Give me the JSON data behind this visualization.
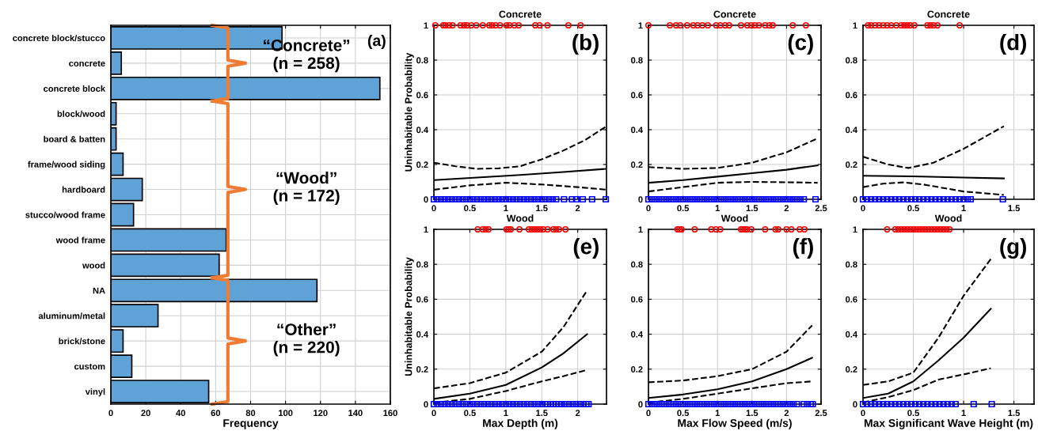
{
  "chart_data": [
    {
      "type": "bar",
      "orientation": "horizontal",
      "xlabel": "Frequency",
      "color": "#5fa2d5",
      "grid": true,
      "categories": [
        "concrete block/stucco",
        "concrete",
        "concrete block",
        "block/wood",
        "board & batten",
        "frame/wood siding",
        "hardboard",
        "stucco/wood frame",
        "wood frame",
        "wood",
        "NA",
        "aluminum/metal",
        "brick/stone",
        "custom",
        "vinyl"
      ],
      "values": [
        98,
        6,
        154,
        3,
        3,
        7,
        18,
        13,
        66,
        62,
        118,
        27,
        7,
        12,
        56
      ],
      "xlim": [
        0,
        160
      ],
      "xticks": [
        0,
        20,
        40,
        60,
        80,
        100,
        120,
        140,
        160
      ],
      "annotations": [
        "(a)",
        "“Concrete”\n(n = 258)",
        "“Wood”\n(n = 172)",
        "“Other”\n(n = 220)"
      ]
    },
    {
      "type": "line",
      "title": "Concrete",
      "ylabel": "Uninhabitable Probability",
      "grid": true,
      "annotations": [
        "(b)"
      ],
      "xlim": [
        0,
        2.4
      ],
      "xticks": [
        0,
        0.5,
        1,
        1.5,
        2
      ],
      "ylim": [
        0,
        1
      ],
      "yticks": [
        0,
        0.2,
        0.4,
        0.6,
        0.8,
        1
      ],
      "series": [
        {
          "type": "scatter",
          "marker": "circle",
          "color": "#ff0000",
          "x": [
            0.02,
            0.13,
            0.16,
            0.21,
            0.26,
            0.37,
            0.42,
            0.46,
            0.52,
            0.59,
            0.68,
            0.77,
            0.81,
            0.86,
            0.92,
            1.01,
            1.05,
            1.12,
            1.18,
            1.41,
            1.47,
            1.58,
            1.87,
            2.04
          ],
          "values": [
            1,
            1,
            1,
            1,
            1,
            1,
            1,
            1,
            1,
            1,
            1,
            1,
            1,
            1,
            1,
            1,
            1,
            1,
            1,
            1,
            1,
            1,
            1,
            1
          ]
        },
        {
          "type": "scatter",
          "marker": "square",
          "color": "#0000ff",
          "x": [
            0,
            0.05,
            0.1,
            0.15,
            0.2,
            0.25,
            0.3,
            0.35,
            0.4,
            0.45,
            0.5,
            0.55,
            0.6,
            0.65,
            0.7,
            0.75,
            0.8,
            0.85,
            0.9,
            0.95,
            1.0,
            1.05,
            1.1,
            1.15,
            1.2,
            1.25,
            1.3,
            1.35,
            1.4,
            1.45,
            1.5,
            1.55,
            1.6,
            1.65,
            1.7,
            1.81,
            1.92,
            1.98,
            2.07,
            2.2,
            2.39
          ],
          "values": [
            0,
            0,
            0,
            0,
            0,
            0,
            0,
            0,
            0,
            0,
            0,
            0,
            0,
            0,
            0,
            0,
            0,
            0,
            0,
            0,
            0,
            0,
            0,
            0,
            0,
            0,
            0,
            0,
            0,
            0,
            0,
            0,
            0,
            0,
            0,
            0,
            0,
            0,
            0,
            0,
            0
          ]
        },
        {
          "type": "line",
          "line_style": "solid",
          "color": "#000000",
          "x": [
            0,
            0.6,
            1.2,
            1.8,
            2.4
          ],
          "values": [
            0.11,
            0.125,
            0.14,
            0.157,
            0.175
          ]
        },
        {
          "type": "line",
          "line_style": "dashed",
          "color": "#000000",
          "x": [
            0,
            0.3,
            0.6,
            0.9,
            1.2,
            1.5,
            1.8,
            2.1,
            2.4
          ],
          "values": [
            0.21,
            0.19,
            0.175,
            0.178,
            0.19,
            0.23,
            0.28,
            0.34,
            0.42
          ]
        },
        {
          "type": "line",
          "line_style": "dashed",
          "color": "#000000",
          "x": [
            0,
            0.5,
            1.0,
            1.5,
            2.0,
            2.4
          ],
          "values": [
            0.055,
            0.08,
            0.095,
            0.085,
            0.07,
            0.055
          ]
        }
      ]
    },
    {
      "type": "line",
      "title": "Concrete",
      "grid": true,
      "annotations": [
        "(c)"
      ],
      "xlim": [
        0,
        2.5
      ],
      "xticks": [
        0,
        0.5,
        1,
        1.5,
        2,
        2.5
      ],
      "ylim": [
        0,
        1
      ],
      "yticks": [
        0,
        0.2,
        0.4,
        0.6,
        0.8,
        1
      ],
      "series": [
        {
          "type": "scatter",
          "marker": "circle",
          "color": "#ff0000",
          "x": [
            0,
            0.31,
            0.4,
            0.46,
            0.56,
            0.65,
            0.71,
            0.78,
            0.86,
            0.98,
            1.04,
            1.11,
            1.17,
            1.34,
            1.43,
            1.49,
            1.54,
            1.6,
            1.69,
            1.75,
            1.8,
            2.09,
            2.28
          ],
          "values": [
            1,
            1,
            1,
            1,
            1,
            1,
            1,
            1,
            1,
            1,
            1,
            1,
            1,
            1,
            1,
            1,
            1,
            1,
            1,
            1,
            1,
            1,
            1
          ]
        },
        {
          "type": "scatter",
          "marker": "square",
          "color": "#0000ff",
          "x": [
            0,
            0.05,
            0.1,
            0.15,
            0.2,
            0.25,
            0.3,
            0.35,
            0.4,
            0.45,
            0.5,
            0.55,
            0.6,
            0.65,
            0.7,
            0.75,
            0.8,
            0.85,
            0.9,
            0.95,
            1.0,
            1.05,
            1.1,
            1.15,
            1.2,
            1.25,
            1.3,
            1.35,
            1.4,
            1.45,
            1.5,
            1.55,
            1.6,
            1.65,
            1.7,
            1.75,
            1.8,
            1.85,
            1.9,
            1.95,
            2.0,
            2.05,
            2.1,
            2.15,
            2.2,
            2.25,
            2.42
          ],
          "values": [
            0,
            0,
            0,
            0,
            0,
            0,
            0,
            0,
            0,
            0,
            0,
            0,
            0,
            0,
            0,
            0,
            0,
            0,
            0,
            0,
            0,
            0,
            0,
            0,
            0,
            0,
            0,
            0,
            0,
            0,
            0,
            0,
            0,
            0,
            0,
            0,
            0,
            0,
            0,
            0,
            0,
            0,
            0,
            0,
            0,
            0,
            0
          ]
        },
        {
          "type": "line",
          "line_style": "solid",
          "color": "#000000",
          "x": [
            0,
            0.5,
            1.0,
            1.5,
            2.0,
            2.45
          ],
          "values": [
            0.095,
            0.11,
            0.13,
            0.15,
            0.17,
            0.195
          ]
        },
        {
          "type": "line",
          "line_style": "dashed",
          "color": "#000000",
          "x": [
            0,
            0.5,
            1.0,
            1.5,
            2.0,
            2.45
          ],
          "values": [
            0.185,
            0.175,
            0.18,
            0.21,
            0.27,
            0.35
          ]
        },
        {
          "type": "line",
          "line_style": "dashed",
          "color": "#000000",
          "x": [
            0,
            0.5,
            1.0,
            1.5,
            2.0,
            2.45
          ],
          "values": [
            0.045,
            0.07,
            0.095,
            0.1,
            0.098,
            0.095
          ]
        }
      ]
    },
    {
      "type": "line",
      "title": "Concrete",
      "grid": true,
      "annotations": [
        "(d)"
      ],
      "xlim": [
        0,
        1.7
      ],
      "xticks": [
        0,
        0.5,
        1,
        1.5
      ],
      "ylim": [
        0,
        1
      ],
      "yticks": [
        0,
        0.2,
        0.4,
        0.6,
        0.8,
        1
      ],
      "series": [
        {
          "type": "scatter",
          "marker": "circle",
          "color": "#ff0000",
          "x": [
            0.05,
            0.08,
            0.12,
            0.16,
            0.2,
            0.24,
            0.28,
            0.33,
            0.38,
            0.41,
            0.44,
            0.47,
            0.51,
            0.64,
            0.67,
            0.7,
            0.74,
            0.96
          ],
          "values": [
            1,
            1,
            1,
            1,
            1,
            1,
            1,
            1,
            1,
            1,
            1,
            1,
            1,
            1,
            1,
            1,
            1,
            1
          ]
        },
        {
          "type": "scatter",
          "marker": "square",
          "color": "#0000ff",
          "x": [
            0,
            0.04,
            0.08,
            0.12,
            0.16,
            0.2,
            0.24,
            0.28,
            0.32,
            0.36,
            0.4,
            0.44,
            0.48,
            0.52,
            0.56,
            0.6,
            0.64,
            0.68,
            0.72,
            0.76,
            0.8,
            0.84,
            0.88,
            0.92,
            0.96,
            1.0,
            1.04,
            1.07,
            1.39
          ],
          "values": [
            0,
            0,
            0,
            0,
            0,
            0,
            0,
            0,
            0,
            0,
            0,
            0,
            0,
            0,
            0,
            0,
            0,
            0,
            0,
            0,
            0,
            0,
            0,
            0,
            0,
            0,
            0,
            0,
            0
          ]
        },
        {
          "type": "line",
          "line_style": "solid",
          "color": "#000000",
          "x": [
            0,
            0.5,
            1.0,
            1.4
          ],
          "values": [
            0.135,
            0.132,
            0.125,
            0.12
          ]
        },
        {
          "type": "line",
          "line_style": "dashed",
          "color": "#000000",
          "x": [
            0,
            0.25,
            0.45,
            0.7,
            1.0,
            1.4
          ],
          "values": [
            0.245,
            0.2,
            0.18,
            0.21,
            0.29,
            0.42
          ]
        },
        {
          "type": "line",
          "line_style": "dashed",
          "color": "#000000",
          "x": [
            0,
            0.2,
            0.4,
            0.6,
            0.8,
            1.0,
            1.4
          ],
          "values": [
            0.07,
            0.09,
            0.097,
            0.085,
            0.065,
            0.045,
            0.025
          ]
        }
      ]
    },
    {
      "type": "line",
      "title": "Wood",
      "ylabel": "Uninhabitable Probability",
      "xlabel": "Max Depth (m)",
      "grid": true,
      "annotations": [
        "(e)"
      ],
      "xlim": [
        0,
        2.4
      ],
      "xticks": [
        0,
        0.5,
        1,
        1.5,
        2
      ],
      "ylim": [
        0,
        1
      ],
      "yticks": [
        0,
        0.2,
        0.4,
        0.6,
        0.8,
        1
      ],
      "series": [
        {
          "type": "scatter",
          "marker": "circle",
          "color": "#ff0000",
          "x": [
            0.61,
            0.68,
            0.72,
            0.76,
            1.01,
            1.04,
            1.07,
            1.19,
            1.32,
            1.36,
            1.4,
            1.44,
            1.48,
            1.52,
            1.58,
            1.66,
            1.7,
            1.74,
            1.83
          ],
          "values": [
            1,
            1,
            1,
            1,
            1,
            1,
            1,
            1,
            1,
            1,
            1,
            1,
            1,
            1,
            1,
            1,
            1,
            1,
            1
          ]
        },
        {
          "type": "scatter",
          "marker": "square",
          "color": "#0000ff",
          "x": [
            0,
            0.05,
            0.1,
            0.15,
            0.2,
            0.25,
            0.3,
            0.35,
            0.4,
            0.45,
            0.5,
            0.55,
            0.6,
            0.65,
            0.7,
            0.75,
            0.8,
            0.85,
            0.9,
            0.95,
            1.0,
            1.05,
            1.1,
            1.15,
            1.2,
            1.25,
            1.3,
            1.35,
            1.4,
            1.45,
            1.5,
            1.55,
            1.58,
            1.62,
            1.66,
            1.7,
            1.74,
            1.78,
            1.83,
            1.88,
            1.93,
            1.98,
            2.03,
            2.08,
            2.12,
            2.15
          ],
          "values": [
            0,
            0,
            0,
            0,
            0,
            0,
            0,
            0,
            0,
            0,
            0,
            0,
            0,
            0,
            0,
            0,
            0,
            0,
            0,
            0,
            0,
            0,
            0,
            0,
            0,
            0,
            0,
            0,
            0,
            0,
            0,
            0,
            0,
            0,
            0,
            0,
            0,
            0,
            0,
            0,
            0,
            0,
            0,
            0,
            0,
            0
          ]
        },
        {
          "type": "line",
          "line_style": "solid",
          "color": "#000000",
          "x": [
            0,
            0.5,
            1.0,
            1.5,
            1.8,
            2.13
          ],
          "values": [
            0.03,
            0.06,
            0.11,
            0.21,
            0.29,
            0.4
          ]
        },
        {
          "type": "line",
          "line_style": "dashed",
          "color": "#000000",
          "x": [
            0,
            0.5,
            1.0,
            1.5,
            1.8,
            2.13
          ],
          "values": [
            0.09,
            0.12,
            0.18,
            0.3,
            0.44,
            0.65
          ]
        },
        {
          "type": "line",
          "line_style": "dashed",
          "color": "#000000",
          "x": [
            0,
            0.5,
            1.0,
            1.5,
            1.8,
            2.13
          ],
          "values": [
            0.008,
            0.03,
            0.075,
            0.13,
            0.16,
            0.195
          ]
        }
      ]
    },
    {
      "type": "line",
      "title": "Wood",
      "xlabel": "Max Flow Speed (m/s)",
      "grid": true,
      "annotations": [
        "(f)"
      ],
      "xlim": [
        0,
        2.5
      ],
      "xticks": [
        0,
        0.5,
        1,
        1.5,
        2,
        2.5
      ],
      "ylim": [
        0,
        1
      ],
      "yticks": [
        0,
        0.2,
        0.4,
        0.6,
        0.8,
        1
      ],
      "series": [
        {
          "type": "scatter",
          "marker": "circle",
          "color": "#ff0000",
          "x": [
            0.42,
            0.45,
            0.48,
            0.67,
            0.91,
            0.98,
            1.04,
            1.34,
            1.37,
            1.4,
            1.43,
            1.49,
            1.69,
            1.84,
            1.88,
            2.0,
            2.07,
            2.19,
            2.26
          ],
          "values": [
            1,
            1,
            1,
            1,
            1,
            1,
            1,
            1,
            1,
            1,
            1,
            1,
            1,
            1,
            1,
            1,
            1,
            1,
            1
          ]
        },
        {
          "type": "scatter",
          "marker": "square",
          "color": "#0000ff",
          "x": [
            0,
            0.05,
            0.1,
            0.15,
            0.2,
            0.25,
            0.3,
            0.35,
            0.4,
            0.45,
            0.5,
            0.55,
            0.6,
            0.65,
            0.7,
            0.75,
            0.8,
            0.85,
            0.9,
            0.95,
            1.0,
            1.05,
            1.1,
            1.15,
            1.2,
            1.25,
            1.3,
            1.35,
            1.4,
            1.45,
            1.5,
            1.55,
            1.6,
            1.65,
            1.7,
            1.75,
            1.8,
            1.85,
            1.9,
            1.95,
            2.0,
            2.05,
            2.1,
            2.15,
            2.25,
            2.3,
            2.35,
            2.38
          ],
          "values": [
            0,
            0,
            0,
            0,
            0,
            0,
            0,
            0,
            0,
            0,
            0,
            0,
            0,
            0,
            0,
            0,
            0,
            0,
            0,
            0,
            0,
            0,
            0,
            0,
            0,
            0,
            0,
            0,
            0,
            0,
            0,
            0,
            0,
            0,
            0,
            0,
            0,
            0,
            0,
            0,
            0,
            0,
            0,
            0,
            0,
            0,
            0,
            0
          ]
        },
        {
          "type": "line",
          "line_style": "solid",
          "color": "#000000",
          "x": [
            0,
            0.5,
            1.0,
            1.5,
            2.0,
            2.37
          ],
          "values": [
            0.035,
            0.055,
            0.085,
            0.13,
            0.2,
            0.265
          ]
        },
        {
          "type": "line",
          "line_style": "dashed",
          "color": "#000000",
          "x": [
            0,
            0.5,
            1.0,
            1.5,
            2.0,
            2.37
          ],
          "values": [
            0.125,
            0.135,
            0.16,
            0.2,
            0.3,
            0.45
          ]
        },
        {
          "type": "line",
          "line_style": "dashed",
          "color": "#000000",
          "x": [
            0,
            0.5,
            1.0,
            1.5,
            2.0,
            2.37
          ],
          "values": [
            0.008,
            0.03,
            0.06,
            0.09,
            0.12,
            0.13
          ]
        }
      ]
    },
    {
      "type": "line",
      "title": "Wood",
      "xlabel": "Max Significant Wave Height (m)",
      "grid": true,
      "annotations": [
        "(g)"
      ],
      "xlim": [
        0,
        1.7
      ],
      "xticks": [
        0,
        0.5,
        1,
        1.5
      ],
      "ylim": [
        0,
        1
      ],
      "yticks": [
        0,
        0.2,
        0.4,
        0.6,
        0.8,
        1
      ],
      "series": [
        {
          "type": "scatter",
          "marker": "circle",
          "color": "#ff0000",
          "x": [
            0.24,
            0.32,
            0.35,
            0.38,
            0.41,
            0.44,
            0.47,
            0.5,
            0.53,
            0.56,
            0.59,
            0.62,
            0.65,
            0.68,
            0.71,
            0.74,
            0.77,
            0.8,
            0.83,
            0.86
          ],
          "values": [
            1,
            1,
            1,
            1,
            1,
            1,
            1,
            1,
            1,
            1,
            1,
            1,
            1,
            1,
            1,
            1,
            1,
            1,
            1,
            1
          ]
        },
        {
          "type": "scatter",
          "marker": "square",
          "color": "#0000ff",
          "x": [
            0,
            0.04,
            0.08,
            0.12,
            0.16,
            0.2,
            0.24,
            0.28,
            0.32,
            0.36,
            0.4,
            0.44,
            0.48,
            0.52,
            0.56,
            0.6,
            0.64,
            0.68,
            0.72,
            0.76,
            0.8,
            0.84,
            0.88,
            0.92,
            1.1,
            1.28
          ],
          "values": [
            0,
            0,
            0,
            0,
            0,
            0,
            0,
            0,
            0,
            0,
            0,
            0,
            0,
            0,
            0,
            0,
            0,
            0,
            0,
            0,
            0,
            0,
            0,
            0,
            0,
            0
          ]
        },
        {
          "type": "line",
          "line_style": "solid",
          "color": "#000000",
          "x": [
            0,
            0.25,
            0.5,
            0.75,
            1.0,
            1.27
          ],
          "values": [
            0.035,
            0.06,
            0.13,
            0.25,
            0.38,
            0.545
          ]
        },
        {
          "type": "line",
          "line_style": "dashed",
          "color": "#000000",
          "x": [
            0,
            0.25,
            0.5,
            0.75,
            1.0,
            1.27
          ],
          "values": [
            0.11,
            0.13,
            0.18,
            0.38,
            0.62,
            0.83
          ]
        },
        {
          "type": "line",
          "line_style": "dashed",
          "color": "#000000",
          "x": [
            0,
            0.25,
            0.5,
            0.75,
            1.0,
            1.27
          ],
          "values": [
            0.01,
            0.04,
            0.08,
            0.14,
            0.17,
            0.205
          ]
        }
      ]
    }
  ]
}
